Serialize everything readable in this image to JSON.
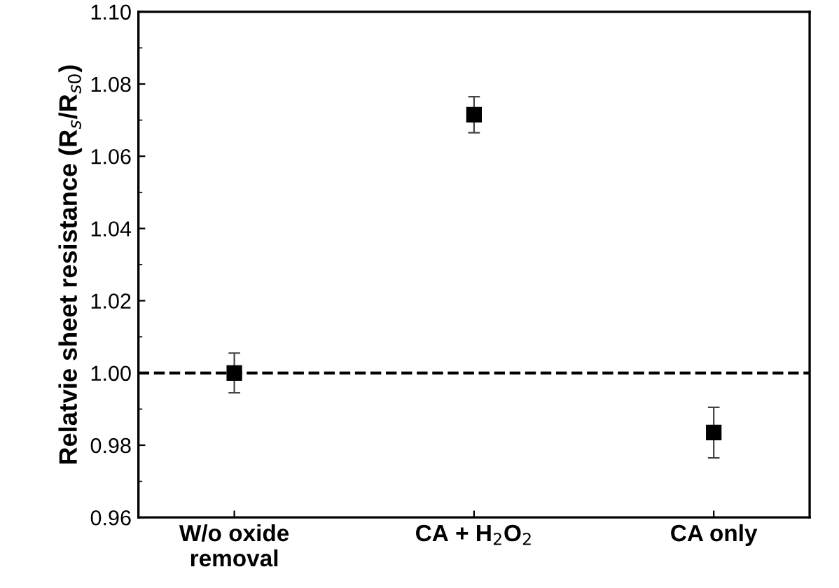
{
  "chart_data": {
    "type": "scatter",
    "ylabel": "Relatvie sheet resistance (R$_{s}$/R$_{s0}$)",
    "categories": [
      "W/o oxide\nremoval",
      "CA + H$_{2}$O$_{2}$",
      "CA only"
    ],
    "series": [
      {
        "color": "#000000",
        "values": [
          1.0,
          1.0715,
          0.9835
        ],
        "errors": [
          0.0055,
          0.005,
          0.007
        ]
      }
    ],
    "ylim": [
      0.96,
      1.1
    ],
    "yticks": [
      0.96,
      0.98,
      {
        "value": 1.0,
        "label": "1.00"
      },
      1.02,
      1.04,
      1.06,
      1.08,
      {
        "value": 1.1,
        "label": "1.10"
      }
    ],
    "ref_lines": [
      {
        "axis": "y",
        "value": 1.0,
        "color": "#000000",
        "line_style": "dashed"
      }
    ],
    "marker": "square",
    "grid": false
  }
}
